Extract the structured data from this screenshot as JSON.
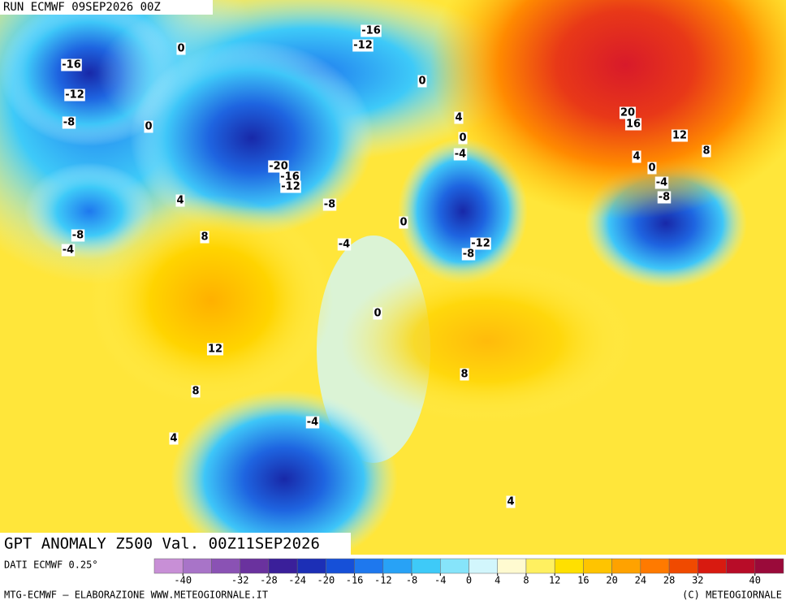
{
  "header": {
    "run": "RUN ECMWF 09SEP2026 00Z"
  },
  "title": "GPT ANOMALY Z500 Val. 00Z11SEP2026",
  "map": {
    "contour_labels": [
      0,
      -16,
      -12,
      0,
      -16,
      -12,
      -8,
      0,
      4,
      0,
      -4,
      20,
      16,
      12,
      8,
      4,
      0,
      -4,
      -8,
      -20,
      -16,
      -12,
      -8,
      4,
      8,
      -8,
      -4,
      -4,
      0,
      -12,
      -8,
      0,
      12,
      8,
      4,
      -4,
      8,
      4
    ]
  },
  "colorbar": {
    "source": "DATI ECMWF 0.25°",
    "ticks": [
      -40,
      -32,
      -28,
      -24,
      -20,
      -16,
      -12,
      -8,
      -4,
      0,
      4,
      8,
      12,
      16,
      20,
      24,
      28,
      32,
      40
    ],
    "range": [
      -44,
      44
    ],
    "colors": [
      "#c88fd6",
      "#a874c8",
      "#8a52b4",
      "#6a329e",
      "#3a1f9a",
      "#1c2fb6",
      "#1650d8",
      "#1e78ee",
      "#28a2f6",
      "#3ecaf8",
      "#86e4fa",
      "#d2f6fc",
      "#fffad0",
      "#fff060",
      "#ffe000",
      "#ffc400",
      "#ffa200",
      "#ff7a00",
      "#f04a00",
      "#d81a10",
      "#b80c28",
      "#9a0a3a"
    ]
  },
  "footer": {
    "credit": "MTG-ECMWF – ELABORAZIONE WWW.METEOGIORNALE.IT",
    "copyright": "(C) METEOGIORNALE"
  }
}
